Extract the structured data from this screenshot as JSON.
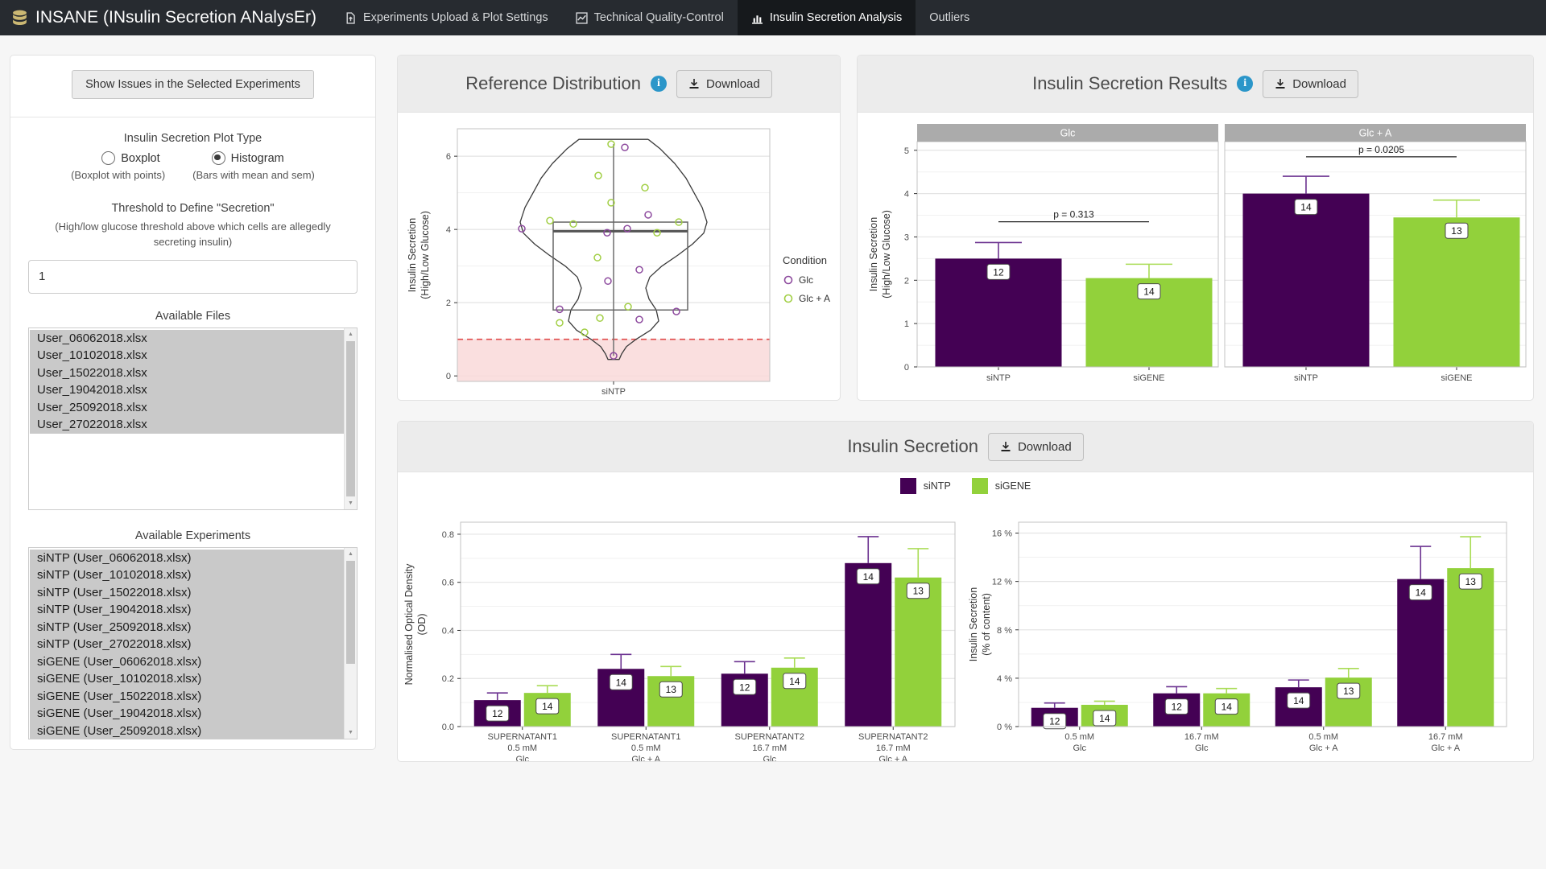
{
  "navbar": {
    "brand": "INSANE (INsulin Secretion ANalysEr)",
    "tabs": [
      {
        "label": "Experiments Upload & Plot Settings",
        "icon": "file-upload-icon",
        "active": false
      },
      {
        "label": "Technical Quality-Control",
        "icon": "line-chart-icon",
        "active": false
      },
      {
        "label": "Insulin Secretion Analysis",
        "icon": "bar-chart-icon",
        "active": true
      },
      {
        "label": "Outliers",
        "icon": "",
        "active": false
      }
    ]
  },
  "sidebar": {
    "issues_button": "Show Issues in the Selected Experiments",
    "plot_type": {
      "label": "Insulin Secretion Plot Type",
      "options": [
        {
          "label": "Boxplot",
          "hint": "(Boxplot with points)",
          "selected": false
        },
        {
          "label": "Histogram",
          "hint": "(Bars with mean and sem)",
          "selected": true
        }
      ]
    },
    "threshold": {
      "label": "Threshold to Define \"Secretion\"",
      "hint": "(High/low glucose threshold above which cells are allegedly secreting insulin)",
      "value": "1"
    },
    "files": {
      "label": "Available Files",
      "items": [
        "User_06062018.xlsx",
        "User_10102018.xlsx",
        "User_15022018.xlsx",
        "User_19042018.xlsx",
        "User_25092018.xlsx",
        "User_27022018.xlsx"
      ],
      "all_selected": true
    },
    "experiments": {
      "label": "Available Experiments",
      "items": [
        "siNTP (User_06062018.xlsx)",
        "siNTP (User_10102018.xlsx)",
        "siNTP (User_15022018.xlsx)",
        "siNTP (User_19042018.xlsx)",
        "siNTP (User_25092018.xlsx)",
        "siNTP (User_27022018.xlsx)",
        "siGENE (User_06062018.xlsx)",
        "siGENE (User_10102018.xlsx)",
        "siGENE (User_15022018.xlsx)",
        "siGENE (User_19042018.xlsx)",
        "siGENE (User_25092018.xlsx)"
      ],
      "all_selected": true
    }
  },
  "panels": {
    "reference": {
      "title": "Reference Distribution",
      "download": "Download",
      "has_info": true
    },
    "results": {
      "title": "Insulin Secretion Results",
      "download": "Download",
      "has_info": true
    },
    "secretion": {
      "title": "Insulin Secretion",
      "download": "Download",
      "has_info": false
    }
  },
  "colors": {
    "siNTP": "#440154",
    "siGENE": "#92d13b",
    "siNTP_error": "#6b3290",
    "siGENE_error": "#a9dc55",
    "point_glc": "#8d4a9e",
    "point_glc_a": "#a2cf45",
    "threshold_line": "#e04b4b",
    "threshold_band": "#f9d7d7",
    "facet_strip": "#ababab",
    "info_blue": "#2b96c9"
  },
  "chart_data": [
    {
      "id": "violin",
      "type": "violin-box",
      "title": "Reference Distribution",
      "x_category": "siNTP",
      "ylabel": [
        "Insulin Secretion",
        "(High/Low Glucose)"
      ],
      "ylim": [
        -0.15,
        6.75
      ],
      "yticks": [
        0,
        2,
        4,
        6
      ],
      "legend": {
        "title": "Condition",
        "entries": [
          {
            "label": "Glc",
            "color": "#8d4a9e"
          },
          {
            "label": "Glc + A",
            "color": "#a2cf45"
          }
        ]
      },
      "threshold_line_y": 1,
      "box": {
        "q1": 1.8,
        "median": 3.95,
        "q3": 4.2,
        "whisker_low": 0.55,
        "whisker_high": 6.33
      },
      "violin_profile": [
        [
          6.46,
          43
        ],
        [
          6.2,
          58
        ],
        [
          5.8,
          76
        ],
        [
          5.4,
          90
        ],
        [
          5.0,
          100
        ],
        [
          4.6,
          110
        ],
        [
          4.2,
          116
        ],
        [
          3.9,
          112
        ],
        [
          3.6,
          98
        ],
        [
          3.3,
          80
        ],
        [
          3.0,
          60
        ],
        [
          2.7,
          45
        ],
        [
          2.4,
          40
        ],
        [
          2.1,
          44
        ],
        [
          1.8,
          53
        ],
        [
          1.5,
          56
        ],
        [
          1.25,
          46
        ],
        [
          1.0,
          28
        ],
        [
          0.8,
          16
        ],
        [
          0.6,
          10
        ],
        [
          0.45,
          7
        ]
      ],
      "points": [
        {
          "v": 6.33,
          "c": 1,
          "dx": -3
        },
        {
          "v": 6.24,
          "c": 0,
          "dx": 14
        },
        {
          "v": 5.47,
          "c": 1,
          "dx": -19
        },
        {
          "v": 5.14,
          "c": 1,
          "dx": 39
        },
        {
          "v": 4.73,
          "c": 1,
          "dx": -3
        },
        {
          "v": 4.4,
          "c": 0,
          "dx": 43
        },
        {
          "v": 4.24,
          "c": 1,
          "dx": -79
        },
        {
          "v": 4.15,
          "c": 1,
          "dx": -50
        },
        {
          "v": 4.2,
          "c": 1,
          "dx": 81
        },
        {
          "v": 4.02,
          "c": 0,
          "dx": -114
        },
        {
          "v": 3.91,
          "c": 0,
          "dx": -8
        },
        {
          "v": 4.02,
          "c": 0,
          "dx": 17
        },
        {
          "v": 3.91,
          "c": 1,
          "dx": 54
        },
        {
          "v": 3.23,
          "c": 1,
          "dx": -20
        },
        {
          "v": 2.9,
          "c": 0,
          "dx": 32
        },
        {
          "v": 2.59,
          "c": 0,
          "dx": -7
        },
        {
          "v": 1.82,
          "c": 0,
          "dx": -67
        },
        {
          "v": 1.89,
          "c": 1,
          "dx": 18
        },
        {
          "v": 1.76,
          "c": 0,
          "dx": 78
        },
        {
          "v": 1.58,
          "c": 1,
          "dx": -17
        },
        {
          "v": 1.45,
          "c": 1,
          "dx": -67
        },
        {
          "v": 1.54,
          "c": 0,
          "dx": 32
        },
        {
          "v": 1.19,
          "c": 1,
          "dx": -36
        },
        {
          "v": 0.55,
          "c": 0,
          "dx": 0
        }
      ]
    },
    {
      "id": "results",
      "type": "bar",
      "title": "Insulin Secretion Results",
      "ylabel": [
        "Insulin Secretion",
        "(High/Low Glucose)"
      ],
      "ylim": [
        0,
        5.2
      ],
      "yticks": [
        0,
        1,
        2,
        3,
        4,
        5
      ],
      "series_colors": [
        "#440154",
        "#92d13b"
      ],
      "error_colors": [
        "#6b3290",
        "#a9dc55"
      ],
      "facets": [
        {
          "label": "Glc",
          "p_value": "p = 0.313",
          "p_line_y": 3.35,
          "categories": [
            "siNTP",
            "siGENE"
          ],
          "values": [
            2.5,
            2.05
          ],
          "errors_high": [
            2.87,
            2.37
          ],
          "counts": [
            12,
            14
          ]
        },
        {
          "label": "Glc + A",
          "p_value": "p = 0.0205",
          "p_line_y": 4.85,
          "categories": [
            "siNTP",
            "siGENE"
          ],
          "values": [
            4.0,
            3.45
          ],
          "errors_high": [
            4.4,
            3.85
          ],
          "counts": [
            14,
            13
          ]
        }
      ]
    },
    {
      "id": "od",
      "type": "bar",
      "title": "Insulin Secretion",
      "ylabel": [
        "Normalised Optical Density",
        "(OD)"
      ],
      "ylim": [
        0,
        0.85
      ],
      "yticks": [
        0,
        0.2,
        0.4,
        0.6,
        0.8
      ],
      "tick_format": "1dp",
      "categories": [
        [
          "SUPERNATANT1",
          "0.5 mM",
          "Glc"
        ],
        [
          "SUPERNATANT1",
          "0.5 mM",
          "Glc + A"
        ],
        [
          "SUPERNATANT2",
          "16.7 mM",
          "Glc"
        ],
        [
          "SUPERNATANT2",
          "16.7 mM",
          "Glc + A"
        ]
      ],
      "series": [
        {
          "name": "siNTP",
          "color": "#440154",
          "error_color": "#6b3290",
          "values": [
            0.11,
            0.24,
            0.22,
            0.68
          ],
          "errors_high": [
            0.14,
            0.3,
            0.27,
            0.79
          ],
          "counts": [
            12,
            14,
            12,
            14
          ]
        },
        {
          "name": "siGENE",
          "color": "#92d13b",
          "error_color": "#a9dc55",
          "values": [
            0.14,
            0.21,
            0.245,
            0.62
          ],
          "errors_high": [
            0.17,
            0.25,
            0.285,
            0.74
          ],
          "counts": [
            14,
            13,
            14,
            13
          ]
        }
      ]
    },
    {
      "id": "pct",
      "type": "bar",
      "title": "Insulin Secretion",
      "ylabel": [
        "Insulin Secretion",
        "(% of content)"
      ],
      "ylim": [
        0,
        16.9
      ],
      "yticks": [
        0,
        4,
        8,
        12,
        16
      ],
      "tick_format": "pct",
      "categories": [
        [
          "0.5 mM",
          "Glc"
        ],
        [
          "16.7 mM",
          "Glc"
        ],
        [
          "0.5 mM",
          "Glc + A"
        ],
        [
          "16.7 mM",
          "Glc + A"
        ]
      ],
      "series": [
        {
          "name": "siNTP",
          "color": "#440154",
          "error_color": "#6b3290",
          "values": [
            1.55,
            2.75,
            3.25,
            12.2
          ],
          "errors_high": [
            1.95,
            3.3,
            3.85,
            14.9
          ],
          "counts": [
            12,
            12,
            14,
            14
          ]
        },
        {
          "name": "siGENE",
          "color": "#92d13b",
          "error_color": "#a9dc55",
          "values": [
            1.8,
            2.75,
            4.05,
            13.1
          ],
          "errors_high": [
            2.1,
            3.15,
            4.8,
            15.7
          ],
          "counts": [
            14,
            14,
            13,
            13
          ]
        }
      ]
    }
  ],
  "bottom_legend": {
    "entries": [
      {
        "label": "siNTP",
        "color": "#440154"
      },
      {
        "label": "siGENE",
        "color": "#92d13b"
      }
    ]
  }
}
